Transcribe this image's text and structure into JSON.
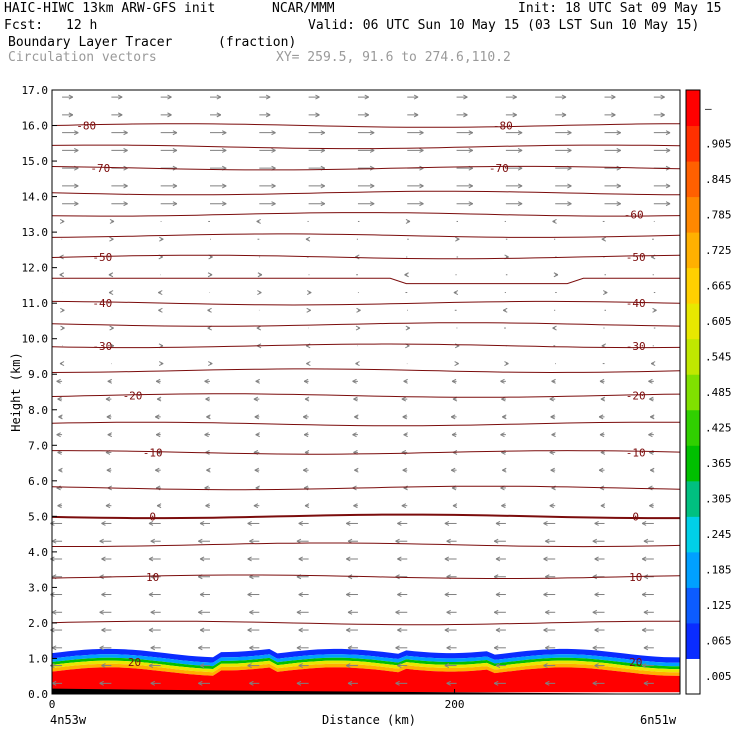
{
  "header": {
    "model": "HAIC-HIWC 13km ARW-GFS init",
    "org": "NCAR/MMM",
    "init": "Init: 18 UTC Sat 09 May 15",
    "fcst_label": "Fcst:",
    "fcst_value": "12 h",
    "valid": "Valid: 06 UTC Sun 10 May 15 (03 LST Sun 10 May 15)",
    "field": "Boundary Layer Tracer",
    "units": "(fraction)",
    "vectors": "Circulation vectors",
    "xy": "XY= 259.5, 91.6 to 274.6,110.2"
  },
  "colors": {
    "contour": "#7b0c0c",
    "vector": "#808080",
    "text_gray": "#9a9a9a"
  },
  "chart_data": {
    "type": "heatmap",
    "title": "Boundary Layer Tracer",
    "units": "(fraction)",
    "xlabel": "Distance (km)",
    "ylabel": "Height (km)",
    "xlim": [
      0,
      312
    ],
    "ylim": [
      0,
      17
    ],
    "x_ticks": [
      0,
      200
    ],
    "y_ticks": [
      "0.0",
      "1.0",
      "2.0",
      "3.0",
      "4.0",
      "5.0",
      "6.0",
      "7.0",
      "8.0",
      "9.0",
      "10.0",
      "11.0",
      "12.0",
      "13.0",
      "14.0",
      "15.0",
      "16.0",
      "17.0"
    ],
    "x_end_labels": {
      "left": "4n53w",
      "right": "6n51w"
    },
    "colorbar": {
      "labels": [
        ".005",
        ".065",
        ".125",
        ".185",
        ".245",
        ".305",
        ".365",
        ".425",
        ".485",
        ".545",
        ".605",
        ".665",
        ".725",
        ".785",
        ".845",
        ".905",
        "–"
      ],
      "colors": [
        "#ffffff",
        "#0a2cff",
        "#0c5cff",
        "#00a0ff",
        "#00d0e8",
        "#00c080",
        "#00c000",
        "#30d000",
        "#80e000",
        "#c0e800",
        "#e8e800",
        "#ffd000",
        "#ffb000",
        "#ff8800",
        "#ff6000",
        "#ff3000",
        "#ff0000"
      ]
    },
    "temperature_contours_C": [
      {
        "value": -80,
        "labels": [
          {
            "x": 17,
            "text": "-80"
          },
          {
            "x": 224,
            "text": "-80"
          }
        ]
      },
      {
        "value": -70,
        "labels": [
          {
            "x": 24,
            "text": "-70"
          },
          {
            "x": 222,
            "text": "-70"
          }
        ]
      },
      {
        "value": -60,
        "labels": [
          {
            "x": 289,
            "text": "-60"
          }
        ]
      },
      {
        "value": -50,
        "labels": [
          {
            "x": 25,
            "text": "-50"
          },
          {
            "x": 290,
            "text": "-50"
          }
        ]
      },
      {
        "value": -40,
        "labels": [
          {
            "x": 25,
            "text": "-40"
          },
          {
            "x": 290,
            "text": "-40"
          }
        ]
      },
      {
        "value": -30,
        "labels": [
          {
            "x": 25,
            "text": "-30"
          },
          {
            "x": 290,
            "text": "-30"
          }
        ]
      },
      {
        "value": -20,
        "labels": [
          {
            "x": 40,
            "text": "-20"
          },
          {
            "x": 290,
            "text": "-20"
          }
        ]
      },
      {
        "value": -10,
        "labels": [
          {
            "x": 50,
            "text": "-10"
          },
          {
            "x": 290,
            "text": "-10"
          }
        ]
      },
      {
        "value": 0,
        "labels": [
          {
            "x": 50,
            "text": "0"
          },
          {
            "x": 290,
            "text": "0"
          }
        ]
      },
      {
        "value": 10,
        "labels": [
          {
            "x": 50,
            "text": "10"
          },
          {
            "x": 290,
            "text": "10"
          }
        ]
      },
      {
        "value": 20,
        "labels": [
          {
            "x": 41,
            "text": "20"
          },
          {
            "x": 290,
            "text": "20"
          }
        ]
      }
    ],
    "isotherm_heights_km": [
      16.0,
      15.4,
      14.8,
      14.1,
      13.5,
      12.9,
      12.3,
      11.7,
      11.0,
      10.4,
      9.8,
      9.1,
      8.4,
      7.6,
      6.8,
      5.8,
      5.0,
      4.2,
      3.3,
      2.0
    ]
  }
}
